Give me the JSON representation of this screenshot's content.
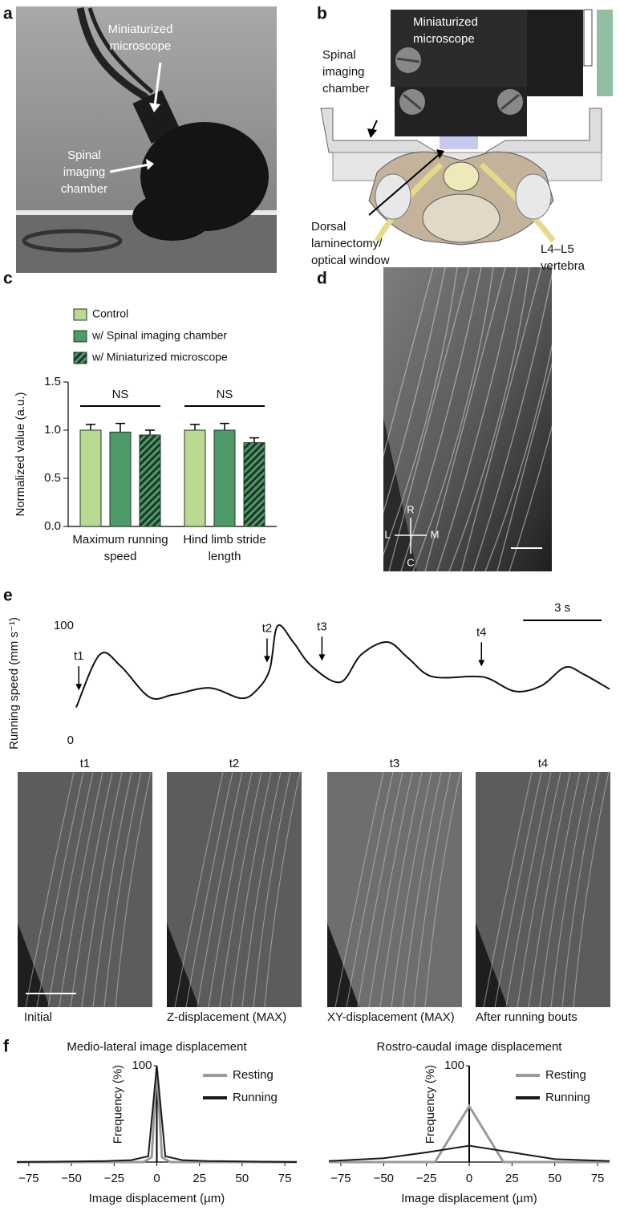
{
  "panel_labels": [
    "a",
    "b",
    "c",
    "d",
    "e",
    "f"
  ],
  "photo_a": {
    "microscope": "Miniaturized microscope",
    "chamber": "Spinal imaging chamber"
  },
  "schematic_b": {
    "microscope": "Miniaturized microscope",
    "chamber": "Spinal imaging chamber",
    "window": "Dorsal laminectomy/ optical window",
    "vertebra": "L4–L5 vertebra"
  },
  "image_d": {
    "compass": [
      "R",
      "L",
      "M",
      "C"
    ]
  },
  "frames_e": [
    {
      "time": "t1",
      "caption": "Initial"
    },
    {
      "time": "t2",
      "caption": "Z-displacement (MAX)"
    },
    {
      "time": "t3",
      "caption": "XY-displacement (MAX)"
    },
    {
      "time": "t4",
      "caption": "After running bouts"
    }
  ],
  "chart_data": [
    {
      "type": "bar",
      "ylabel": "Normalized value (a.u.)",
      "categories": [
        "Maximum running speed",
        "Hind limb stride length"
      ],
      "series": [
        {
          "name": "Control",
          "color": "#b9da90",
          "values": [
            1.0,
            1.0
          ],
          "errors": [
            0.06,
            0.06
          ]
        },
        {
          "name": "w/ Spinal imaging chamber",
          "color": "#4e9a68",
          "values": [
            0.98,
            1.0
          ],
          "errors": [
            0.09,
            0.07
          ]
        },
        {
          "name": "w/ Miniaturized microscope",
          "color": "#4e9a68",
          "hatch": "#1d3526",
          "values": [
            0.95,
            0.87
          ],
          "errors": [
            0.05,
            0.05
          ]
        }
      ],
      "ylim": [
        0,
        1.5
      ],
      "yticks": [
        {
          "value": 0,
          "label": "0.0"
        },
        0.5,
        {
          "value": 1,
          "label": "1.0"
        },
        1.5
      ],
      "legend": "top-left",
      "annotations": [
        "NS",
        "NS"
      ]
    },
    {
      "type": "line",
      "ylabel": "Running speed (mm s⁻¹)",
      "smooth": true,
      "color": "#111111",
      "x": [
        0,
        0.9,
        1.7,
        2.8,
        3.7,
        5.1,
        6.3,
        6.9,
        7.4,
        7.7,
        8.3,
        9.0,
        10.1,
        10.9,
        11.9,
        12.7,
        13.6,
        15.2,
        15.8,
        16.8,
        17.8,
        18.7,
        19.4,
        20.4
      ],
      "values": [
        29,
        75,
        65,
        38,
        40,
        46,
        37,
        44,
        62,
        100,
        86,
        65,
        51,
        75,
        86,
        72,
        56,
        56,
        54,
        43,
        48,
        64,
        58,
        45
      ],
      "xlim": [
        0,
        20.4
      ],
      "ylim": [
        0,
        100
      ],
      "yticks": [
        0,
        100
      ],
      "scale_bar": {
        "label": "3 s",
        "length": 3
      },
      "annotations": [
        {
          "text": "t1",
          "x": 0.1
        },
        {
          "text": "t2",
          "x": 7.3
        },
        {
          "text": "t3",
          "x": 9.4
        },
        {
          "text": "t4",
          "x": 15.5
        }
      ]
    },
    {
      "type": "line",
      "title": "Medio-lateral image displacement",
      "xlabel": "Image displacement (µm)",
      "ylabel": "Frequency (%)",
      "xlim": [
        -82,
        82
      ],
      "ylim": [
        0,
        100
      ],
      "xticks": [
        {
          "value": -75,
          "label": "−75"
        },
        {
          "value": -50,
          "label": "−50"
        },
        {
          "value": -25,
          "label": "−25"
        },
        0,
        25,
        50,
        75
      ],
      "yticks": [
        100
      ],
      "legend": "top-right",
      "series": [
        {
          "name": "Resting",
          "color": "#9a9a9a",
          "x": [
            -82,
            -8,
            -3,
            0,
            3,
            8,
            82
          ],
          "values": [
            0,
            0,
            5,
            98,
            5,
            0,
            0
          ]
        },
        {
          "name": "Running",
          "color": "#1a1a1a",
          "x": [
            -82,
            -30,
            -15,
            -5,
            0,
            5,
            15,
            30,
            82
          ],
          "values": [
            0,
            1,
            2,
            6,
            100,
            6,
            2,
            1,
            0
          ]
        }
      ]
    },
    {
      "type": "line",
      "title": "Rostro-caudal image displacement",
      "xlabel": "Image displacement (µm)",
      "ylabel": "Frequency (%)",
      "xlim": [
        -82,
        82
      ],
      "ylim": [
        0,
        100
      ],
      "xticks": [
        {
          "value": -75,
          "label": "−75"
        },
        {
          "value": -50,
          "label": "−50"
        },
        {
          "value": -25,
          "label": "−25"
        },
        0,
        25,
        50,
        75
      ],
      "yticks": [
        100
      ],
      "legend": "top-right",
      "series": [
        {
          "name": "Resting",
          "color": "#9a9a9a",
          "x": [
            -82,
            -20,
            0,
            20,
            82
          ],
          "values": [
            0,
            0,
            58,
            0,
            0
          ]
        },
        {
          "name": "Running",
          "color": "#1a1a1a",
          "x": [
            -82,
            -50,
            -25,
            0,
            25,
            50,
            82
          ],
          "values": [
            1,
            4,
            10,
            17,
            10,
            3,
            1
          ]
        }
      ]
    }
  ]
}
